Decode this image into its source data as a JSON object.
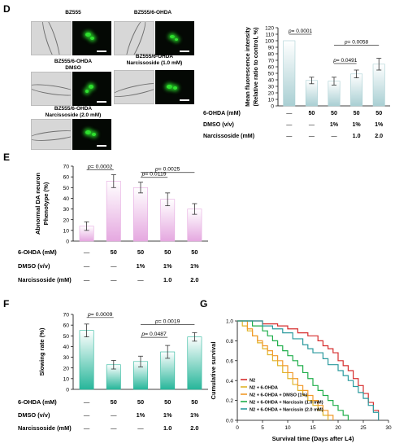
{
  "panels": {
    "D": {
      "letter": "D",
      "images": [
        {
          "caption": "BZ555"
        },
        {
          "caption": "BZ555/6-OHDA"
        },
        {
          "caption": "BZ555/6-OHDA\nDMSO"
        },
        {
          "caption": "BZ555/6-OHDA\nNarcissoside (1.0 mM)"
        },
        {
          "caption": "BZ555/6-OHDA\nNarcissoside (2.0 mM)"
        }
      ]
    },
    "E": {
      "letter": "E"
    },
    "F": {
      "letter": "F"
    },
    "G": {
      "letter": "G"
    }
  },
  "colors": {
    "bar_D": "#a9cfd3",
    "bar_E": "#e5a8e0",
    "bar_F": "#27b69a",
    "surv_N2": "#d62d2d",
    "surv_6OHDA": "#e0b428",
    "surv_DMSO": "#f19a2a",
    "surv_N1": "#1fae4a",
    "surv_N2mM": "#2b9a9e"
  },
  "chart_data": [
    {
      "panel": "D",
      "type": "bar",
      "categories": [
        "1",
        "2",
        "3",
        "4",
        "5"
      ],
      "values": [
        100,
        39,
        38,
        49,
        64
      ],
      "errors": [
        0,
        5,
        6,
        6,
        9
      ],
      "ylabel": "Mean fluorescence intensity\n(Relative ratio to control, %)",
      "ylim": [
        0,
        120
      ],
      "yticks": [
        "0",
        "10",
        "20",
        "30",
        "40",
        "50",
        "60",
        "70",
        "80",
        "90",
        "100",
        "110",
        "120"
      ],
      "comparisons": [
        {
          "from": 0,
          "to": 1,
          "label": "p= 0.0001"
        },
        {
          "from": 2,
          "to": 4,
          "label": "p= 0.0058"
        },
        {
          "from": 2,
          "to": 3,
          "label": "p= 0.0491"
        }
      ],
      "conditions": [
        {
          "label": "6-OHDA (mM)",
          "values": [
            "—",
            "50",
            "50",
            "50",
            "50"
          ]
        },
        {
          "label": "DMSO (v/v)",
          "values": [
            "—",
            "—",
            "1%",
            "1%",
            "1%"
          ]
        },
        {
          "label": "Narcissoside (mM)",
          "values": [
            "—",
            "—",
            "—",
            "1.0",
            "2.0"
          ]
        }
      ]
    },
    {
      "panel": "E",
      "type": "bar",
      "categories": [
        "1",
        "2",
        "3",
        "4",
        "5"
      ],
      "values": [
        14,
        56,
        50,
        39,
        30
      ],
      "errors": [
        4,
        6,
        5,
        6,
        5
      ],
      "ylabel": "Abnormal DA neuron\nPhenotype (%)",
      "ylim": [
        0,
        70
      ],
      "yticks": [
        "0",
        "10",
        "20",
        "30",
        "40",
        "50",
        "60",
        "70"
      ],
      "comparisons": [
        {
          "from": 0,
          "to": 1,
          "label": "p= 0.0002"
        },
        {
          "from": 2,
          "to": 4,
          "label": "p= 0.0025"
        },
        {
          "from": 2,
          "to": 3,
          "label": "p= 0.0119"
        }
      ],
      "conditions": [
        {
          "label": "6-OHDA (mM)",
          "values": [
            "—",
            "50",
            "50",
            "50",
            "50"
          ]
        },
        {
          "label": "DMSO (v/v)",
          "values": [
            "—",
            "—",
            "1%",
            "1%",
            "1%"
          ]
        },
        {
          "label": "Narcissoside (mM)",
          "values": [
            "—",
            "—",
            "—",
            "1.0",
            "2.0"
          ]
        }
      ]
    },
    {
      "panel": "F",
      "type": "bar",
      "categories": [
        "1",
        "2",
        "3",
        "4",
        "5"
      ],
      "values": [
        55,
        23,
        26,
        35,
        49
      ],
      "errors": [
        6,
        4,
        5,
        6,
        4
      ],
      "ylabel": "Slowing rate (%)",
      "ylim": [
        0,
        70
      ],
      "yticks": [
        "0",
        "10",
        "20",
        "30",
        "40",
        "50",
        "60",
        "70"
      ],
      "comparisons": [
        {
          "from": 0,
          "to": 1,
          "label": "p= 0.0009"
        },
        {
          "from": 2,
          "to": 4,
          "label": "p= 0.0019"
        },
        {
          "from": 2,
          "to": 3,
          "label": "p= 0.0487"
        }
      ],
      "conditions": [
        {
          "label": "6-OHDA (mM)",
          "values": [
            "—",
            "50",
            "50",
            "50",
            "50"
          ]
        },
        {
          "label": "DMSO (v/v)",
          "values": [
            "—",
            "—",
            "1%",
            "1%",
            "1%"
          ]
        },
        {
          "label": "Narcissoside (mM)",
          "values": [
            "—",
            "—",
            "—",
            "1.0",
            "2.0"
          ]
        }
      ]
    },
    {
      "panel": "G",
      "type": "line",
      "step": true,
      "xlabel": "Survival time (Days after L4)",
      "ylabel": "Cumulative survival",
      "xlim": [
        0,
        30
      ],
      "ylim": [
        0,
        1.0
      ],
      "xticks": [
        "0",
        "5",
        "10",
        "15",
        "20",
        "25",
        "30"
      ],
      "yticks": [
        "0.0",
        "0.2",
        "0.4",
        "0.6",
        "0.8",
        "1.0"
      ],
      "legend_position": "bottom-left",
      "series": [
        {
          "name": "N2",
          "color_key": "surv_N2",
          "points": [
            [
              0,
              1.0
            ],
            [
              4,
              1.0
            ],
            [
              5,
              0.97
            ],
            [
              8,
              0.95
            ],
            [
              10,
              0.92
            ],
            [
              12,
              0.88
            ],
            [
              14,
              0.85
            ],
            [
              16,
              0.8
            ],
            [
              17,
              0.75
            ],
            [
              18,
              0.72
            ],
            [
              19,
              0.68
            ],
            [
              20,
              0.6
            ],
            [
              21,
              0.55
            ],
            [
              22,
              0.5
            ],
            [
              23,
              0.42
            ],
            [
              24,
              0.35
            ],
            [
              25,
              0.27
            ],
            [
              26,
              0.18
            ],
            [
              27,
              0.1
            ],
            [
              28,
              0.0
            ]
          ]
        },
        {
          "name": "N2 + 6-OHDA",
          "color_key": "surv_6OHDA",
          "points": [
            [
              0,
              1.0
            ],
            [
              1,
              0.95
            ],
            [
              2,
              0.9
            ],
            [
              3,
              0.85
            ],
            [
              4,
              0.78
            ],
            [
              5,
              0.72
            ],
            [
              6,
              0.66
            ],
            [
              7,
              0.6
            ],
            [
              8,
              0.55
            ],
            [
              9,
              0.48
            ],
            [
              10,
              0.42
            ],
            [
              11,
              0.36
            ],
            [
              12,
              0.3
            ],
            [
              13,
              0.25
            ],
            [
              14,
              0.2
            ],
            [
              15,
              0.15
            ],
            [
              16,
              0.1
            ],
            [
              17,
              0.05
            ],
            [
              18,
              0.0
            ]
          ]
        },
        {
          "name": "N2 + 6-OHDA + DMSO (1%)",
          "color_key": "surv_DMSO",
          "points": [
            [
              0,
              1.0
            ],
            [
              2,
              0.92
            ],
            [
              3,
              0.85
            ],
            [
              4,
              0.8
            ],
            [
              5,
              0.75
            ],
            [
              6,
              0.7
            ],
            [
              7,
              0.65
            ],
            [
              8,
              0.6
            ],
            [
              9,
              0.55
            ],
            [
              10,
              0.48
            ],
            [
              11,
              0.42
            ],
            [
              12,
              0.35
            ],
            [
              13,
              0.3
            ],
            [
              14,
              0.25
            ],
            [
              15,
              0.2
            ],
            [
              16,
              0.15
            ],
            [
              17,
              0.1
            ],
            [
              18,
              0.05
            ],
            [
              19,
              0.0
            ]
          ]
        },
        {
          "name": "N2 + 6-OHDA + Narcissin (1.0 mM)",
          "color_key": "surv_N1",
          "points": [
            [
              0,
              1.0
            ],
            [
              3,
              0.95
            ],
            [
              5,
              0.9
            ],
            [
              6,
              0.85
            ],
            [
              7,
              0.8
            ],
            [
              8,
              0.75
            ],
            [
              9,
              0.7
            ],
            [
              10,
              0.65
            ],
            [
              11,
              0.6
            ],
            [
              12,
              0.55
            ],
            [
              13,
              0.48
            ],
            [
              14,
              0.42
            ],
            [
              15,
              0.35
            ],
            [
              16,
              0.3
            ],
            [
              17,
              0.25
            ],
            [
              18,
              0.2
            ],
            [
              19,
              0.15
            ],
            [
              20,
              0.1
            ],
            [
              21,
              0.05
            ],
            [
              22,
              0.0
            ]
          ]
        },
        {
          "name": "N2 + 6-OHDA + Narcissin (2.0 mM)",
          "color_key": "surv_N2mM",
          "points": [
            [
              0,
              1.0
            ],
            [
              3,
              1.0
            ],
            [
              5,
              0.95
            ],
            [
              7,
              0.92
            ],
            [
              9,
              0.88
            ],
            [
              11,
              0.82
            ],
            [
              13,
              0.76
            ],
            [
              14,
              0.72
            ],
            [
              15,
              0.68
            ],
            [
              17,
              0.62
            ],
            [
              18,
              0.56
            ],
            [
              20,
              0.5
            ],
            [
              21,
              0.45
            ],
            [
              22,
              0.4
            ],
            [
              23,
              0.34
            ],
            [
              24,
              0.28
            ],
            [
              25,
              0.22
            ],
            [
              26,
              0.15
            ],
            [
              27,
              0.08
            ],
            [
              28,
              0.0
            ]
          ]
        }
      ]
    }
  ]
}
